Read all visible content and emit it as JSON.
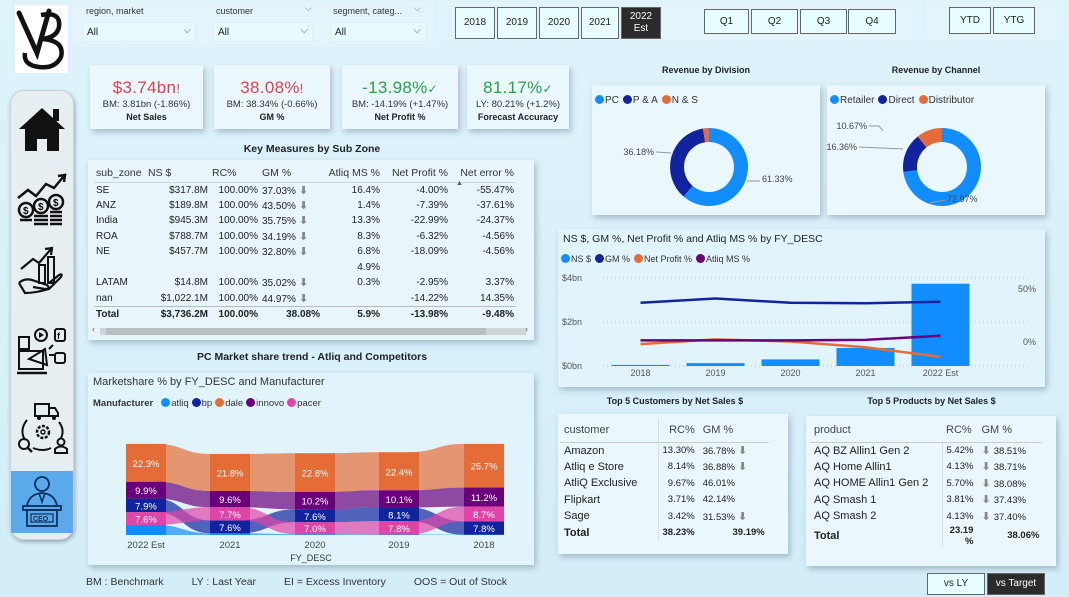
{
  "filters": [
    {
      "label": "region, market",
      "value": "All"
    },
    {
      "label": "customer",
      "value": "All"
    },
    {
      "label": "segment, categ...",
      "value": "All"
    }
  ],
  "years": [
    {
      "label": "2018",
      "active": false
    },
    {
      "label": "2019",
      "active": false
    },
    {
      "label": "2020",
      "active": false
    },
    {
      "label": "2021",
      "active": false
    },
    {
      "label": "2022 Est",
      "active": true
    }
  ],
  "quarters": [
    "Q1",
    "Q2",
    "Q3",
    "Q4"
  ],
  "period": [
    "YTD",
    "YTG"
  ],
  "compare": [
    {
      "label": "vs LY",
      "active": false
    },
    {
      "label": "vs Target",
      "active": true
    }
  ],
  "sidebar": {
    "items": [
      {
        "name": "home",
        "icon": "home-icon"
      },
      {
        "name": "finance",
        "icon": "finance-coins-icon"
      },
      {
        "name": "sales",
        "icon": "sales-growth-icon"
      },
      {
        "name": "marketing",
        "icon": "marketing-icon"
      },
      {
        "name": "supply-chain",
        "icon": "supply-chain-icon"
      },
      {
        "name": "executive",
        "icon": "ceo-icon",
        "active": true
      }
    ]
  },
  "kpis": [
    {
      "value": "$3.74bn",
      "mark": "!",
      "status": "bad",
      "sub": "BM: 3.81bn (-1.86%)",
      "label": "Net Sales"
    },
    {
      "value": "38.08%",
      "mark": "!",
      "status": "bad",
      "sub": "BM: 38.34% (-0.66%)",
      "label": "GM %"
    },
    {
      "value": "-13.98%",
      "mark": "✓",
      "status": "good",
      "sub": "BM: -14.19% (+1.47%)",
      "label": "Net Profit %"
    },
    {
      "value": "81.17%",
      "mark": "✓",
      "status": "good",
      "sub": "LY: 80.21% (+1.2%)",
      "label": "Forecast Accuracy"
    }
  ],
  "key_measures": {
    "title": "Key Measures by Sub Zone",
    "columns": [
      "sub_zone",
      "NS $",
      "RC%",
      "GM %",
      "Atliq MS %",
      "Net Profit %",
      "Net error %"
    ],
    "rows": [
      {
        "sub_zone": "SE",
        "ns": "$317.8M",
        "rc": "100.00%",
        "gm": "37.03%",
        "down": true,
        "ms": "16.4%",
        "np": "-4.00%",
        "ne": "-55.47%"
      },
      {
        "sub_zone": "ANZ",
        "ns": "$189.8M",
        "rc": "100.00%",
        "gm": "43.50%",
        "down": true,
        "ms": "1.4%",
        "np": "-7.39%",
        "ne": "-37.61%"
      },
      {
        "sub_zone": "India",
        "ns": "$945.3M",
        "rc": "100.00%",
        "gm": "35.75%",
        "down": true,
        "ms": "13.3%",
        "np": "-22.99%",
        "ne": "-24.37%"
      },
      {
        "sub_zone": "ROA",
        "ns": "$788.7M",
        "rc": "100.00%",
        "gm": "34.19%",
        "down": true,
        "ms": "8.3%",
        "np": "-6.32%",
        "ne": "-4.56%"
      },
      {
        "sub_zone": "NE",
        "ns": "$457.7M",
        "rc": "100.00%",
        "gm": "32.80%",
        "down": true,
        "ms": "6.8%",
        "np": "-18.09%",
        "ne": "-4.56%"
      },
      {
        "sub_zone": "",
        "ns": "",
        "rc": "",
        "gm": "",
        "down": false,
        "ms": "4.9%",
        "np": "",
        "ne": ""
      },
      {
        "sub_zone": "LATAM",
        "ns": "$14.8M",
        "rc": "100.00%",
        "gm": "35.02%",
        "down": true,
        "ms": "0.3%",
        "np": "-2.95%",
        "ne": "3.37%"
      },
      {
        "sub_zone": "nan",
        "ns": "$1,022.1M",
        "rc": "100.00%",
        "gm": "44.97%",
        "down": true,
        "ms": "",
        "np": "-14.22%",
        "ne": "14.35%"
      }
    ],
    "total": {
      "sub_zone": "Total",
      "ns": "$3,736.2M",
      "rc": "100.00%",
      "gm": "38.08%",
      "ms": "5.9%",
      "np": "-13.98%",
      "ne": "-9.48%"
    }
  },
  "legend_notes": [
    "BM : Benchmark",
    "LY : Last Year",
    "EI = Excess Inventory",
    "OOS = Out of Stock"
  ],
  "top_customers": {
    "title": "Top 5 Customers by Net Sales $",
    "columns": [
      "customer",
      "RC%",
      "GM %"
    ],
    "rows": [
      {
        "name": "Amazon",
        "rc": "13.30%",
        "gm": "36.78%",
        "down": true
      },
      {
        "name": "Atliq e Store",
        "rc": "8.14%",
        "gm": "36.88%",
        "down": true
      },
      {
        "name": "AtliQ Exclusive",
        "rc": "9.67%",
        "gm": "46.01%",
        "down": false
      },
      {
        "name": "Flipkart",
        "rc": "3.71%",
        "gm": "42.14%",
        "down": false
      },
      {
        "name": "Sage",
        "rc": "3.42%",
        "gm": "31.53%",
        "down": true
      }
    ],
    "total": {
      "name": "Total",
      "rc": "38.23%",
      "gm": "39.19%"
    }
  },
  "top_products": {
    "title": "Top 5 Products by Net Sales $",
    "columns": [
      "product",
      "RC%",
      "GM %"
    ],
    "rows": [
      {
        "name": "AQ BZ Allin1 Gen 2",
        "rc": "5.42%",
        "gm": "38.51%",
        "down": true
      },
      {
        "name": "AQ Home Allin1",
        "rc": "4.13%",
        "gm": "38.71%",
        "down": true
      },
      {
        "name": "AQ HOME Allin1 Gen 2",
        "rc": "5.70%",
        "gm": "38.08%",
        "down": true
      },
      {
        "name": "AQ Smash 1",
        "rc": "3.81%",
        "gm": "37.43%",
        "down": true
      },
      {
        "name": "AQ Smash 2",
        "rc": "4.13%",
        "gm": "37.40%",
        "down": true
      }
    ],
    "total": {
      "name": "Total",
      "rc": "23.19 %",
      "gm": "38.06%"
    }
  },
  "chart_data": [
    {
      "type": "pie",
      "subtype": "donut",
      "title": "Revenue by Division",
      "legend_position": "top-left",
      "labels": [
        "PC",
        "P & A",
        "N & S"
      ],
      "values": [
        61.33,
        36.18,
        2.49
      ],
      "value_labels": [
        "61.33%",
        "36.18%",
        ""
      ],
      "colors": [
        "#118dff",
        "#12239e",
        "#e66c37"
      ]
    },
    {
      "type": "pie",
      "subtype": "donut",
      "title": "Revenue by Channel",
      "legend_position": "top-left",
      "labels": [
        "Retailer",
        "Direct",
        "Distributor"
      ],
      "values": [
        72.97,
        16.36,
        10.67
      ],
      "value_labels": [
        "72.97%",
        "16.36%",
        "10.67%"
      ],
      "colors": [
        "#118dff",
        "#12239e",
        "#e66c37"
      ]
    },
    {
      "type": "bar",
      "subtype": "combo-bar-line",
      "title": "NS $, GM %, Net Profit % and Atliq MS % by FY_DESC",
      "legend_position": "top-left",
      "categories": [
        "2018",
        "2019",
        "2020",
        "2021",
        "2022 Est"
      ],
      "bar_series": {
        "name": "NS $",
        "values": [
          0.05,
          0.13,
          0.3,
          0.82,
          3.74
        ],
        "unit": "bn",
        "color": "#118dff"
      },
      "line_series": [
        {
          "name": "GM %",
          "values": [
            37,
            41,
            37,
            36.5,
            38
          ],
          "color": "#12239e"
        },
        {
          "name": "Net Profit %",
          "values": [
            -2,
            2.5,
            0.5,
            -5,
            -14
          ],
          "color": "#e66c37"
        },
        {
          "name": "Atliq MS %",
          "values": [
            1.5,
            1.5,
            1.5,
            2,
            5.9
          ],
          "color": "#6b007b"
        }
      ],
      "legend": [
        "NS $",
        "GM %",
        "Net Profit %",
        "Atliq MS %"
      ],
      "y_left": {
        "ticks": [
          "$0bn",
          "$2bn",
          "$4bn"
        ],
        "range": [
          0,
          4
        ]
      },
      "y_right": {
        "ticks": [
          "0%",
          "50%"
        ],
        "range": [
          -20,
          70
        ]
      },
      "grid": true
    },
    {
      "type": "area",
      "subtype": "ribbon",
      "section_title": "PC Market share trend - Atliq and Competitors",
      "title": "Marketshare % by FY_DESC and Manufacturer",
      "legend_title": "Manufacturer",
      "legend_position": "top-left",
      "xlabel": "FY_DESC",
      "categories": [
        "2022 Est",
        "2021",
        "2020",
        "2019",
        "2018"
      ],
      "series": [
        {
          "name": "atliq",
          "color": "#118dff",
          "values": [
            5.9,
            1.0,
            0.5,
            0.3,
            0.2
          ],
          "labels": [
            "",
            "",
            "",
            "",
            ""
          ]
        },
        {
          "name": "bp",
          "color": "#12239e",
          "values": [
            7.9,
            7.6,
            7.6,
            8.1,
            7.8
          ],
          "labels": [
            "7.9%",
            "7.6%",
            "7.6%",
            "8.1%",
            "7.8%"
          ]
        },
        {
          "name": "dale",
          "color": "#e66c37",
          "values": [
            22.3,
            21.8,
            22.8,
            22.4,
            25.7
          ],
          "labels": [
            "22.3%",
            "21.8%",
            "22.8%",
            "22.4%",
            "25.7%"
          ]
        },
        {
          "name": "innovo",
          "color": "#6b007b",
          "values": [
            9.9,
            9.6,
            10.2,
            10.1,
            11.2
          ],
          "labels": [
            "9.9%",
            "9.6%",
            "10.2%",
            "10.1%",
            "11.2%"
          ]
        },
        {
          "name": "pacer",
          "color": "#e044a7",
          "values": [
            7.6,
            7.7,
            7.0,
            7.8,
            8.7
          ],
          "labels": [
            "7.6%",
            "7.7%",
            "7.0%",
            "7.8%",
            "8.7%"
          ]
        }
      ]
    }
  ]
}
